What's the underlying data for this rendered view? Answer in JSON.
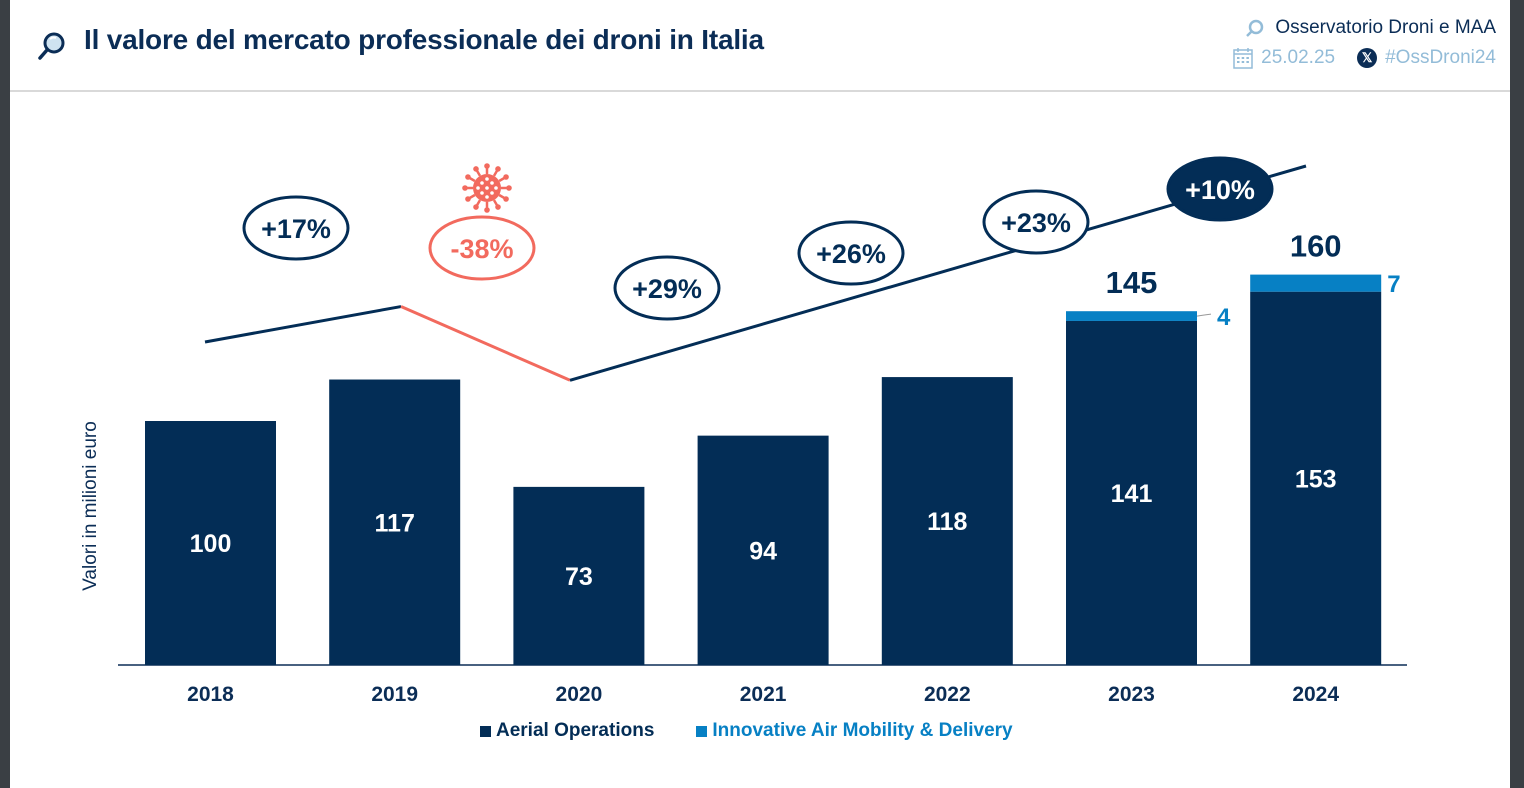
{
  "header": {
    "title": "Il valore del mercato professionale dei droni in Italia",
    "title_icon": "magnifier-icon",
    "organization": "Osservatorio Droni e MAA",
    "date": "25.02.25",
    "hashtag": "#OssDroni24",
    "social_icon": "x-logo-icon",
    "calendar_icon": "calendar-icon"
  },
  "colors": {
    "primary": "#032d56",
    "secondary": "#0780c4",
    "covid": "#f26a5e",
    "axis": "#0b2d56"
  },
  "chart_data": {
    "type": "bar",
    "stacked": true,
    "title": "Il valore del mercato professionale dei droni in Italia",
    "xlabel": "",
    "ylabel": "Valori in milioni euro",
    "categories": [
      "2018",
      "2019",
      "2020",
      "2021",
      "2022",
      "2023",
      "2024"
    ],
    "series": [
      {
        "name": "Aerial Operations",
        "color": "#032d56",
        "values": [
          100,
          117,
          73,
          94,
          118,
          141,
          153
        ]
      },
      {
        "name": "Innovative Air Mobility & Delivery",
        "color": "#0780c4",
        "values": [
          0,
          0,
          0,
          0,
          0,
          4,
          7
        ]
      }
    ],
    "totals": [
      100,
      117,
      73,
      94,
      118,
      145,
      160
    ],
    "growth_labels": [
      {
        "label": "+17%",
        "style": "outline"
      },
      {
        "label": "-38%",
        "style": "covid",
        "icon": "virus-icon"
      },
      {
        "label": "+29%",
        "style": "outline"
      },
      {
        "label": "+26%",
        "style": "outline"
      },
      {
        "label": "+23%",
        "style": "outline"
      },
      {
        "label": "+10%",
        "style": "filled"
      }
    ],
    "ylim": [
      0,
      170
    ],
    "grid": false,
    "legend_position": "bottom-center"
  }
}
